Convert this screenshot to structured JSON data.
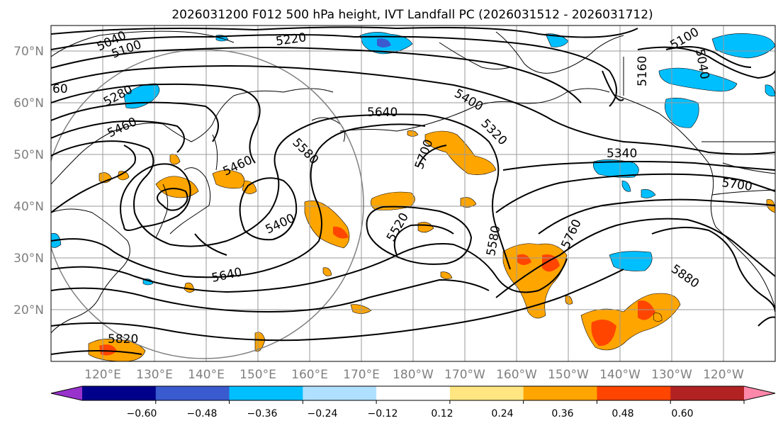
{
  "title": "2026031200 F012 500 hPa height, IVT Landfall PC (2026031512 - 2026031712)",
  "map": {
    "projection": "PlateCarree",
    "lon_range": [
      110,
      250
    ],
    "lat_range": [
      10,
      75
    ],
    "lat_labels": [
      "20°N",
      "30°N",
      "40°N",
      "50°N",
      "60°N",
      "70°N"
    ],
    "lon_labels": [
      "120°E",
      "130°E",
      "140°E",
      "150°E",
      "160°E",
      "170°E",
      "180°W",
      "170°W",
      "160°W",
      "150°W",
      "140°W",
      "130°W",
      "120°W"
    ],
    "gridlines": true,
    "coastlines": true,
    "contour_field": "500 hPa height",
    "contour_labels": [
      "5040",
      "5100",
      "5220",
      "60",
      "5280",
      "5460",
      "5640",
      "5400",
      "5320",
      "5160",
      "5100",
      "5040",
      "5580",
      "5700",
      "5340",
      "5700",
      "5460",
      "5400",
      "5520",
      "5580",
      "5760",
      "5640",
      "5880",
      "5820"
    ],
    "shaded_field": "IVT Landfall PC"
  },
  "colorbar": {
    "ticks": [
      "−0.60",
      "−0.48",
      "−0.36",
      "−0.24",
      "−0.12",
      "0.12",
      "0.24",
      "0.36",
      "0.48",
      "0.60"
    ],
    "levels": [
      -0.72,
      -0.6,
      -0.48,
      -0.36,
      -0.24,
      -0.12,
      0.12,
      0.24,
      0.36,
      0.48,
      0.6,
      0.72
    ],
    "colors": [
      "#9932cc",
      "#00008b",
      "#3a5bcf",
      "#00bfff",
      "#b0e0ff",
      "#ffffff",
      "#ffe680",
      "#ffa500",
      "#ff4500",
      "#b22222",
      "#ff88aa"
    ],
    "extend": "both"
  }
}
